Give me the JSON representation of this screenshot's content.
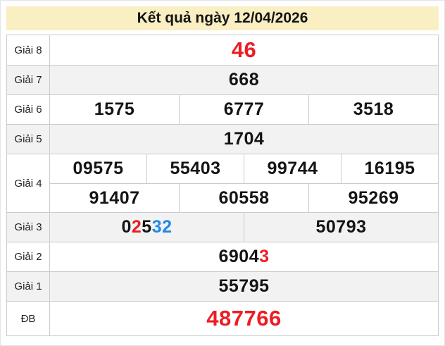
{
  "title": "Kết quả ngày 12/04/2026",
  "colors": {
    "header_bg": "#FAEFC3",
    "zebra": "#F2F2F2",
    "border": "#CBCBCB",
    "black": "#141414",
    "red": "#ED1C24",
    "blue": "#2189E8"
  },
  "table": {
    "rows": [
      {
        "label": "Giải 8",
        "size": "lg",
        "subrows": [
          [
            [
              {
                "t": "46",
                "c": "red"
              }
            ]
          ]
        ]
      },
      {
        "label": "Giải 7",
        "subrows": [
          [
            [
              {
                "t": "668"
              }
            ]
          ]
        ]
      },
      {
        "label": "Giải 6",
        "subrows": [
          [
            [
              {
                "t": "1575"
              }
            ],
            [
              {
                "t": "6777"
              }
            ],
            [
              {
                "t": "3518"
              }
            ]
          ]
        ]
      },
      {
        "label": "Giải 5",
        "subrows": [
          [
            [
              {
                "t": "1704"
              }
            ]
          ]
        ]
      },
      {
        "label": "Giải 4",
        "subrows": [
          [
            [
              {
                "t": "09575"
              }
            ],
            [
              {
                "t": "55403"
              }
            ],
            [
              {
                "t": "99744"
              }
            ],
            [
              {
                "t": "16195"
              }
            ]
          ],
          [
            [
              {
                "t": "91407"
              }
            ],
            [
              {
                "t": "60558"
              }
            ],
            [
              {
                "t": "95269"
              }
            ]
          ]
        ]
      },
      {
        "label": "Giải 3",
        "subrows": [
          [
            [
              {
                "t": "0"
              },
              {
                "t": "2",
                "c": "red"
              },
              {
                "t": "5"
              },
              {
                "t": "32",
                "c": "blue"
              }
            ],
            [
              {
                "t": "50793"
              }
            ]
          ]
        ]
      },
      {
        "label": "Giải 2",
        "subrows": [
          [
            [
              {
                "t": "6904"
              },
              {
                "t": "3",
                "c": "red"
              }
            ]
          ]
        ]
      },
      {
        "label": "Giải 1",
        "subrows": [
          [
            [
              {
                "t": "55795"
              }
            ]
          ]
        ]
      },
      {
        "label": "ĐB",
        "size": "lg",
        "tall": true,
        "subrows": [
          [
            [
              {
                "t": "487766",
                "c": "red"
              }
            ]
          ]
        ]
      }
    ]
  }
}
